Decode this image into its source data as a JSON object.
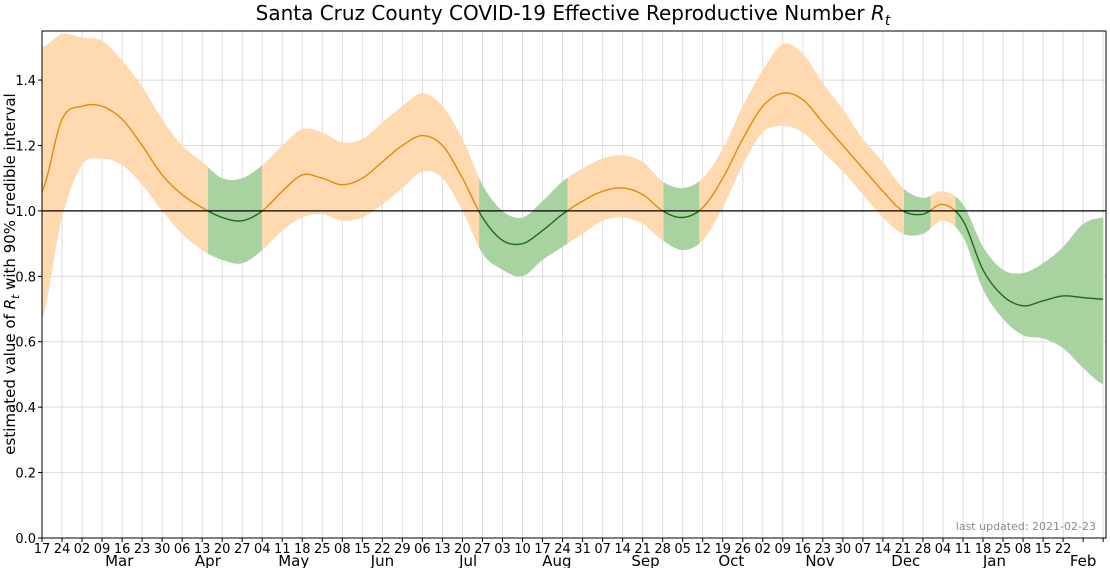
{
  "chart_data": {
    "type": "line",
    "title": "Santa Cruz County COVID-19 Effective Reproductive Number",
    "title_symbol": "R",
    "title_subscript": "t",
    "ylabel_prefix": "estimated value of ",
    "ylabel_symbol": "R",
    "ylabel_subscript": "t",
    "ylabel_suffix": " with 90% credible interval",
    "xlabel": "",
    "ylim": [
      0.0,
      1.55
    ],
    "yticks": [
      "0.0",
      "0.2",
      "0.4",
      "0.6",
      "0.8",
      "1.0",
      "1.2",
      "1.4"
    ],
    "reference_line": 1.0,
    "grid": true,
    "x_range": [
      "2020-02-17",
      "2021-02-23"
    ],
    "day_tick_labels": [
      "17",
      "24",
      "02",
      "09",
      "16",
      "23",
      "30",
      "06",
      "13",
      "20",
      "27",
      "04",
      "11",
      "18",
      "25",
      "08",
      "15",
      "22",
      "29",
      "06",
      "13",
      "20",
      "27",
      "03",
      "10",
      "17",
      "24",
      "31",
      "07",
      "14",
      "21",
      "28",
      "05",
      "12",
      "19",
      "26",
      "02",
      "09",
      "16",
      "23",
      "30",
      "07",
      "14",
      "21",
      "28",
      "04",
      "11",
      "18",
      "25",
      "08",
      "15",
      "22"
    ],
    "month_labels": [
      "Mar",
      "Apr",
      "May",
      "Jun",
      "Jul",
      "Aug",
      "Sep",
      "Oct",
      "Nov",
      "Dec",
      "Jan",
      "Feb"
    ],
    "note": "last updated: 2021-02-23",
    "colors": {
      "above_line": "#e8880c",
      "above_band": "#ffd9b0",
      "below_line": "#1f6b14",
      "below_band": "#a9d2a1",
      "reference": "#000000",
      "grid": "#dcdcdc"
    },
    "series": [
      {
        "name": "",
        "x": [
          "2020-02-17",
          "2020-02-24",
          "2020-03-02",
          "2020-03-09",
          "2020-03-16",
          "2020-03-23",
          "2020-03-30",
          "2020-04-06",
          "2020-04-13",
          "2020-04-20",
          "2020-04-27",
          "2020-05-04",
          "2020-05-11",
          "2020-05-18",
          "2020-05-25",
          "2020-06-01",
          "2020-06-08",
          "2020-06-15",
          "2020-06-22",
          "2020-06-29",
          "2020-07-06",
          "2020-07-13",
          "2020-07-20",
          "2020-07-27",
          "2020-08-03",
          "2020-08-10",
          "2020-08-17",
          "2020-08-24",
          "2020-08-31",
          "2020-09-07",
          "2020-09-14",
          "2020-09-21",
          "2020-09-28",
          "2020-10-05",
          "2020-10-12",
          "2020-10-19",
          "2020-10-26",
          "2020-11-02",
          "2020-11-09",
          "2020-11-16",
          "2020-11-23",
          "2020-11-30",
          "2020-12-07",
          "2020-12-14",
          "2020-12-21",
          "2020-12-28",
          "2021-01-04",
          "2021-01-11",
          "2021-01-18",
          "2021-01-25",
          "2021-02-01",
          "2021-02-08",
          "2021-02-15",
          "2021-02-22"
        ],
        "rt": [
          1.06,
          1.28,
          1.32,
          1.32,
          1.28,
          1.2,
          1.11,
          1.05,
          1.01,
          0.98,
          0.97,
          1.0,
          1.06,
          1.11,
          1.1,
          1.08,
          1.1,
          1.15,
          1.2,
          1.23,
          1.2,
          1.1,
          0.98,
          0.91,
          0.9,
          0.94,
          0.99,
          1.03,
          1.06,
          1.07,
          1.05,
          1.0,
          0.98,
          1.01,
          1.1,
          1.22,
          1.32,
          1.36,
          1.34,
          1.27,
          1.2,
          1.13,
          1.06,
          1.0,
          0.99,
          1.02,
          0.97,
          0.82,
          0.74,
          0.71,
          0.725,
          0.74,
          0.735,
          0.73
        ],
        "lower": [
          0.67,
          0.98,
          1.14,
          1.16,
          1.14,
          1.08,
          1.0,
          0.93,
          0.88,
          0.85,
          0.84,
          0.88,
          0.94,
          0.98,
          0.99,
          0.97,
          0.98,
          1.02,
          1.07,
          1.12,
          1.1,
          1.0,
          0.87,
          0.82,
          0.8,
          0.85,
          0.89,
          0.93,
          0.97,
          0.98,
          0.96,
          0.91,
          0.88,
          0.91,
          1.01,
          1.14,
          1.24,
          1.26,
          1.24,
          1.18,
          1.12,
          1.05,
          0.98,
          0.93,
          0.93,
          0.97,
          0.92,
          0.76,
          0.67,
          0.62,
          0.61,
          0.58,
          0.52,
          0.47
        ],
        "upper": [
          1.5,
          1.54,
          1.53,
          1.52,
          1.46,
          1.38,
          1.28,
          1.2,
          1.15,
          1.1,
          1.1,
          1.14,
          1.2,
          1.25,
          1.24,
          1.21,
          1.22,
          1.27,
          1.32,
          1.36,
          1.32,
          1.22,
          1.08,
          1.0,
          0.98,
          1.03,
          1.09,
          1.13,
          1.16,
          1.17,
          1.15,
          1.09,
          1.07,
          1.1,
          1.19,
          1.32,
          1.43,
          1.51,
          1.48,
          1.39,
          1.31,
          1.22,
          1.15,
          1.07,
          1.04,
          1.06,
          1.02,
          0.89,
          0.82,
          0.81,
          0.84,
          0.89,
          0.96,
          0.98
        ]
      }
    ]
  }
}
